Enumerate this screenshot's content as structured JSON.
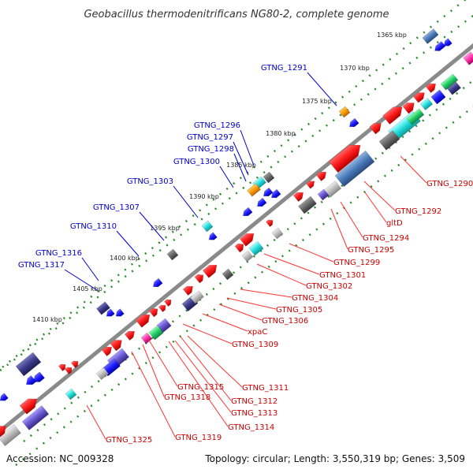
{
  "title": "Geobacillus thermodenitrificans NG80-2, complete genome",
  "footer": {
    "accession": "Accession: NC_009328",
    "summary": "Topology: circular; Length: 3,550,319 bp; Genes: 3,509"
  },
  "scale_labels": [
    "1365 kbp",
    "1370 kbp",
    "1375 kbp",
    "1380 kbp",
    "1385 kbp",
    "1390 kbp",
    "1395 kbp",
    "1400 kbp",
    "1405 kbp",
    "1410 kbp"
  ],
  "top_strand_labels": [
    "GTNG_1291",
    "GTNG_1296",
    "GTNG_1297",
    "GTNG_1298",
    "GTNG_1300",
    "GTNG_1303",
    "GTNG_1307",
    "GTNG_1310",
    "GTNG_1316",
    "GTNG_1317"
  ],
  "bottom_strand_labels": [
    "GTNG_1290",
    "GTNG_1292",
    "gltD",
    "GTNG_1294",
    "GTNG_1295",
    "GTNG_1299",
    "GTNG_1301",
    "GTNG_1302",
    "GTNG_1304",
    "GTNG_1305",
    "GTNG_1306",
    "xpaC",
    "GTNG_1309",
    "GTNG_1311",
    "GTNG_1312",
    "GTNG_1313",
    "GTNG_1314",
    "GTNG_1315",
    "GTNG_1318",
    "GTNG_1319",
    "GTNG_1325"
  ],
  "colors": {
    "backbone": "#8a8a8a",
    "dots": "#2e8b2e",
    "top_label": "#0000cc",
    "bottom_label": "#cc0000",
    "gene_red": "#ff1a1a",
    "gene_blue": "#1a1aff",
    "gene_steel": "#4a7ab8",
    "gene_cyan": "#22dddd",
    "gene_navy": "#3a3a8a",
    "gene_grey": "#666666",
    "gene_orange": "#ff9900",
    "gene_green": "#22cc66",
    "gene_magenta": "#ff33aa"
  }
}
